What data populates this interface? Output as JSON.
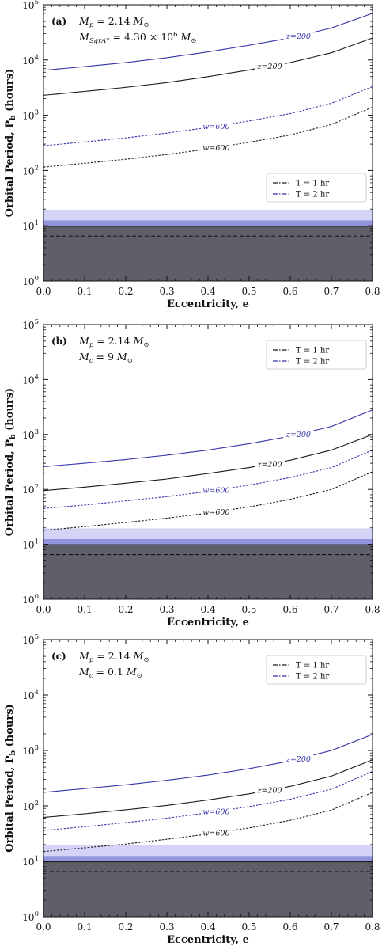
{
  "chart_data": [
    {
      "type": "line",
      "panel": "(a)",
      "annotations": [
        "M_p = 2.14 M_⊙",
        "M_SgrA* = 4.30 × 10^6 M_⊙"
      ],
      "xlabel": "Eccentricity, e",
      "ylabel": "Orbital Period, P_b (hours)",
      "xlim": [
        0.0,
        0.8
      ],
      "ylim": [
        1,
        100000
      ],
      "yscale": "log",
      "x_ticks": [
        "0.0",
        "0.1",
        "0.2",
        "0.3",
        "0.4",
        "0.5",
        "0.6",
        "0.7",
        "0.8"
      ],
      "legend": {
        "position": "center-right",
        "entries": [
          "T = 1 hr",
          "T = 2 hr"
        ]
      },
      "x": [
        0.0,
        0.1,
        0.2,
        0.3,
        0.4,
        0.5,
        0.6,
        0.7,
        0.8
      ],
      "series": [
        {
          "label": "z=200",
          "T": "2 hr",
          "values": [
            6500,
            7600,
            9000,
            11000,
            14000,
            18500,
            25000,
            38000,
            70000
          ]
        },
        {
          "label": "z=200",
          "T": "1 hr",
          "values": [
            2300,
            2700,
            3200,
            3900,
            5000,
            6600,
            9000,
            13500,
            25000
          ]
        },
        {
          "label": "w=600",
          "T": "2 hr",
          "values": [
            280,
            330,
            390,
            475,
            600,
            790,
            1070,
            1650,
            3300
          ]
        },
        {
          "label": "w=600",
          "T": "1 hr",
          "values": [
            115,
            135,
            160,
            195,
            245,
            325,
            440,
            680,
            1400
          ]
        }
      ],
      "bands": [
        {
          "from": 1,
          "to": 9.8,
          "color": "#5f5f6a",
          "opacity": 1
        },
        {
          "from": 9.8,
          "to": 12.5,
          "color": "#7f82d6",
          "opacity": 0.85
        },
        {
          "from": 12.5,
          "to": 19.5,
          "color": "#b7b9f0",
          "opacity": 0.6
        }
      ],
      "hlines": [
        {
          "y": 9.8,
          "style": "solid",
          "color": "#111111"
        },
        {
          "y": 6.5,
          "style": "dashed",
          "color": "#111111"
        }
      ]
    },
    {
      "type": "line",
      "panel": "(b)",
      "annotations": [
        "M_p = 2.14 M_⊙",
        "M_c = 9 M_⊙"
      ],
      "xlabel": "Eccentricity, e",
      "ylabel": "Orbital Period, P_b (hours)",
      "xlim": [
        0.0,
        0.8
      ],
      "ylim": [
        1,
        100000
      ],
      "yscale": "log",
      "x_ticks": [
        "0.0",
        "0.1",
        "0.2",
        "0.3",
        "0.4",
        "0.5",
        "0.6",
        "0.7",
        "0.8"
      ],
      "legend": {
        "position": "top-right",
        "entries": [
          "T = 1 hr",
          "T = 2 hr"
        ]
      },
      "x": [
        0.0,
        0.1,
        0.2,
        0.3,
        0.4,
        0.5,
        0.6,
        0.7,
        0.8
      ],
      "series": [
        {
          "label": "z=200",
          "T": "2 hr",
          "values": [
            260,
            300,
            350,
            420,
            520,
            680,
            930,
            1400,
            2800
          ]
        },
        {
          "label": "z=200",
          "T": "1 hr",
          "values": [
            95,
            110,
            130,
            155,
            195,
            250,
            340,
            520,
            1000
          ]
        },
        {
          "label": "w=600",
          "T": "2 hr",
          "values": [
            45,
            52,
            62,
            74,
            92,
            120,
            165,
            250,
            520
          ]
        },
        {
          "label": "w=600",
          "T": "1 hr",
          "values": [
            18,
            21,
            25,
            30,
            37,
            48,
            66,
            100,
            210
          ]
        }
      ],
      "bands": [
        {
          "from": 1,
          "to": 9.8,
          "color": "#5f5f6a",
          "opacity": 1
        },
        {
          "from": 9.8,
          "to": 12.5,
          "color": "#7f82d6",
          "opacity": 0.85
        },
        {
          "from": 12.5,
          "to": 19.5,
          "color": "#b7b9f0",
          "opacity": 0.6
        }
      ],
      "hlines": [
        {
          "y": 9.8,
          "style": "solid",
          "color": "#111111"
        },
        {
          "y": 6.5,
          "style": "dashed",
          "color": "#111111"
        }
      ]
    },
    {
      "type": "line",
      "panel": "(c)",
      "annotations": [
        "M_p = 2.14 M_⊙",
        "M_c = 0.1 M_⊙"
      ],
      "xlabel": "Eccentricity, e",
      "ylabel": "Orbital Period, P_b (hours)",
      "xlim": [
        0.0,
        0.8
      ],
      "ylim": [
        1,
        100000
      ],
      "yscale": "log",
      "x_ticks": [
        "0.0",
        "0.1",
        "0.2",
        "0.3",
        "0.4",
        "0.5",
        "0.6",
        "0.7",
        "0.8"
      ],
      "legend": {
        "position": "top-right",
        "entries": [
          "T = 1 hr",
          "T = 2 hr"
        ]
      },
      "x": [
        0.0,
        0.1,
        0.2,
        0.3,
        0.4,
        0.5,
        0.6,
        0.7,
        0.8
      ],
      "series": [
        {
          "label": "z=200",
          "T": "2 hr",
          "values": [
            175,
            205,
            240,
            290,
            360,
            470,
            650,
            1000,
            1950
          ]
        },
        {
          "label": "z=200",
          "T": "1 hr",
          "values": [
            62,
            72,
            85,
            102,
            128,
            165,
            225,
            345,
            680
          ]
        },
        {
          "label": "w=600",
          "T": "2 hr",
          "values": [
            36,
            42,
            50,
            60,
            75,
            97,
            132,
            200,
            420
          ]
        },
        {
          "label": "w=600",
          "T": "1 hr",
          "values": [
            15,
            17.5,
            20.5,
            25,
            31,
            40,
            55,
            84,
            175
          ]
        }
      ],
      "bands": [
        {
          "from": 1,
          "to": 9.8,
          "color": "#5f5f6a",
          "opacity": 1
        },
        {
          "from": 9.8,
          "to": 12.5,
          "color": "#7f82d6",
          "opacity": 0.85
        },
        {
          "from": 12.5,
          "to": 19.5,
          "color": "#b7b9f0",
          "opacity": 0.6
        }
      ],
      "hlines": [
        {
          "y": 9.8,
          "style": "solid",
          "color": "#111111"
        },
        {
          "y": 6.5,
          "style": "dashed",
          "color": "#111111"
        }
      ]
    }
  ],
  "colors": {
    "T1": "#1a1a1a",
    "T2": "#3333aa"
  }
}
